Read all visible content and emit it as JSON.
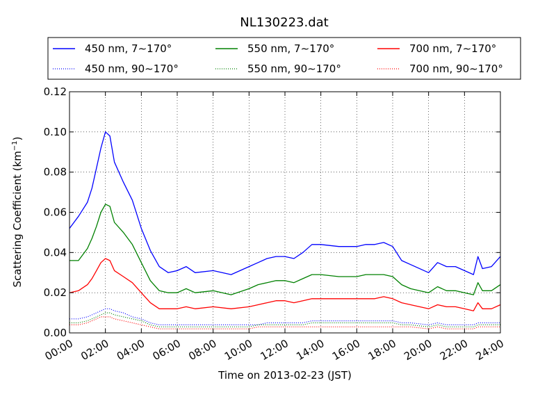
{
  "chart_data": {
    "type": "line",
    "title": "NL130223.dat",
    "xlabel": "Time on 2013-02-23 (JST)",
    "ylabel": "Scattering Coefficient (km",
    "ylabel_sup": "−1",
    "ylabel_end": ")",
    "xlim": [
      "00:00",
      "24:00"
    ],
    "ylim": [
      0.0,
      0.12
    ],
    "grid": true,
    "legend_position": "top",
    "x_ticks": [
      "00:00",
      "02:00",
      "04:00",
      "06:00",
      "08:00",
      "10:00",
      "12:00",
      "14:00",
      "16:00",
      "18:00",
      "20:00",
      "22:00",
      "24:00"
    ],
    "y_ticks": [
      "0.00",
      "0.02",
      "0.04",
      "0.06",
      "0.08",
      "0.10",
      "0.12"
    ],
    "x": [
      "00:00",
      "00:30",
      "01:00",
      "01:15",
      "01:30",
      "01:45",
      "02:00",
      "02:15",
      "02:30",
      "03:00",
      "03:30",
      "04:00",
      "04:30",
      "05:00",
      "05:30",
      "06:00",
      "06:30",
      "07:00",
      "08:00",
      "09:00",
      "10:00",
      "10:30",
      "11:00",
      "11:30",
      "12:00",
      "12:30",
      "13:00",
      "13:30",
      "14:00",
      "15:00",
      "16:00",
      "16:30",
      "17:00",
      "17:30",
      "18:00",
      "18:30",
      "19:00",
      "20:00",
      "20:30",
      "21:00",
      "21:30",
      "22:00",
      "22:30",
      "22:45",
      "23:00",
      "23:30",
      "24:00"
    ],
    "series": [
      {
        "name": "450 nm, 7∼170°",
        "color": "#0000ff",
        "style": "solid",
        "values": [
          0.052,
          0.058,
          0.065,
          0.072,
          0.082,
          0.092,
          0.1,
          0.098,
          0.085,
          0.075,
          0.066,
          0.052,
          0.041,
          0.033,
          0.03,
          0.031,
          0.033,
          0.03,
          0.031,
          0.029,
          0.033,
          0.035,
          0.037,
          0.038,
          0.038,
          0.037,
          0.04,
          0.044,
          0.044,
          0.043,
          0.043,
          0.044,
          0.044,
          0.045,
          0.043,
          0.036,
          0.034,
          0.03,
          0.035,
          0.033,
          0.033,
          0.031,
          0.029,
          0.038,
          0.032,
          0.033,
          0.038
        ]
      },
      {
        "name": "550 nm, 7∼170°",
        "color": "#008000",
        "style": "solid",
        "values": [
          0.036,
          0.036,
          0.042,
          0.047,
          0.053,
          0.06,
          0.064,
          0.063,
          0.055,
          0.05,
          0.044,
          0.035,
          0.026,
          0.021,
          0.02,
          0.02,
          0.022,
          0.02,
          0.021,
          0.019,
          0.022,
          0.024,
          0.025,
          0.026,
          0.026,
          0.025,
          0.027,
          0.029,
          0.029,
          0.028,
          0.028,
          0.029,
          0.029,
          0.029,
          0.028,
          0.024,
          0.022,
          0.02,
          0.023,
          0.021,
          0.021,
          0.02,
          0.019,
          0.025,
          0.021,
          0.021,
          0.024
        ]
      },
      {
        "name": "700 nm, 7∼170°",
        "color": "#ff0000",
        "style": "solid",
        "values": [
          0.02,
          0.021,
          0.024,
          0.027,
          0.031,
          0.035,
          0.037,
          0.036,
          0.031,
          0.028,
          0.025,
          0.02,
          0.015,
          0.012,
          0.012,
          0.012,
          0.013,
          0.012,
          0.013,
          0.012,
          0.013,
          0.014,
          0.015,
          0.016,
          0.016,
          0.015,
          0.016,
          0.017,
          0.017,
          0.017,
          0.017,
          0.017,
          0.017,
          0.018,
          0.017,
          0.015,
          0.014,
          0.012,
          0.014,
          0.013,
          0.013,
          0.012,
          0.011,
          0.015,
          0.012,
          0.012,
          0.014
        ]
      },
      {
        "name": "450 nm, 90∼170°",
        "color": "#0000ff",
        "style": "dotted",
        "values": [
          0.007,
          0.007,
          0.008,
          0.009,
          0.01,
          0.011,
          0.012,
          0.012,
          0.011,
          0.01,
          0.008,
          0.007,
          0.005,
          0.004,
          0.004,
          0.004,
          0.004,
          0.004,
          0.004,
          0.004,
          0.004,
          0.004,
          0.005,
          0.005,
          0.005,
          0.005,
          0.005,
          0.006,
          0.006,
          0.006,
          0.006,
          0.006,
          0.006,
          0.006,
          0.006,
          0.005,
          0.005,
          0.004,
          0.005,
          0.004,
          0.004,
          0.004,
          0.004,
          0.005,
          0.005,
          0.005,
          0.005
        ]
      },
      {
        "name": "550 nm, 90∼170°",
        "color": "#008000",
        "style": "dotted",
        "values": [
          0.005,
          0.005,
          0.006,
          0.007,
          0.008,
          0.009,
          0.01,
          0.01,
          0.009,
          0.008,
          0.007,
          0.006,
          0.004,
          0.003,
          0.003,
          0.003,
          0.003,
          0.003,
          0.003,
          0.003,
          0.003,
          0.004,
          0.004,
          0.004,
          0.004,
          0.004,
          0.004,
          0.005,
          0.005,
          0.005,
          0.005,
          0.005,
          0.005,
          0.005,
          0.005,
          0.004,
          0.004,
          0.003,
          0.004,
          0.003,
          0.003,
          0.003,
          0.003,
          0.004,
          0.004,
          0.004,
          0.004
        ]
      },
      {
        "name": "700 nm, 90∼170°",
        "color": "#ff0000",
        "style": "dotted",
        "values": [
          0.004,
          0.004,
          0.005,
          0.006,
          0.007,
          0.008,
          0.008,
          0.008,
          0.007,
          0.006,
          0.005,
          0.004,
          0.003,
          0.002,
          0.002,
          0.002,
          0.002,
          0.002,
          0.002,
          0.002,
          0.002,
          0.003,
          0.003,
          0.003,
          0.003,
          0.003,
          0.003,
          0.003,
          0.003,
          0.003,
          0.003,
          0.003,
          0.003,
          0.003,
          0.003,
          0.003,
          0.003,
          0.002,
          0.003,
          0.002,
          0.002,
          0.002,
          0.002,
          0.003,
          0.003,
          0.003,
          0.003
        ]
      }
    ]
  }
}
